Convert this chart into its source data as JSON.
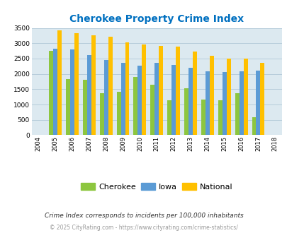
{
  "title": "Cherokee Property Crime Index",
  "years": [
    2004,
    2005,
    2006,
    2007,
    2008,
    2009,
    2010,
    2011,
    2012,
    2013,
    2014,
    2015,
    2016,
    2017,
    2018
  ],
  "cherokee": [
    0,
    2750,
    1820,
    1800,
    1380,
    1420,
    1890,
    1650,
    1130,
    1530,
    1170,
    1150,
    1360,
    590,
    0
  ],
  "iowa": [
    0,
    2820,
    2790,
    2620,
    2460,
    2350,
    2270,
    2350,
    2290,
    2190,
    2090,
    2060,
    2090,
    2110,
    0
  ],
  "national": [
    0,
    3430,
    3340,
    3270,
    3210,
    3040,
    2960,
    2910,
    2890,
    2730,
    2600,
    2490,
    2490,
    2370,
    0
  ],
  "cherokee_color": "#8dc63f",
  "iowa_color": "#5b9bd5",
  "national_color": "#ffc000",
  "bg_color": "#dce9f0",
  "ylim": [
    0,
    3500
  ],
  "yticks": [
    0,
    500,
    1000,
    1500,
    2000,
    2500,
    3000,
    3500
  ],
  "title_color": "#0070c0",
  "title_fontsize": 10,
  "legend_labels": [
    "Cherokee",
    "Iowa",
    "National"
  ],
  "footnote1": "Crime Index corresponds to incidents per 100,000 inhabitants",
  "footnote2": "© 2025 CityRating.com - https://www.cityrating.com/crime-statistics/",
  "bar_width": 0.25,
  "grid_color": "#b0c8d8"
}
